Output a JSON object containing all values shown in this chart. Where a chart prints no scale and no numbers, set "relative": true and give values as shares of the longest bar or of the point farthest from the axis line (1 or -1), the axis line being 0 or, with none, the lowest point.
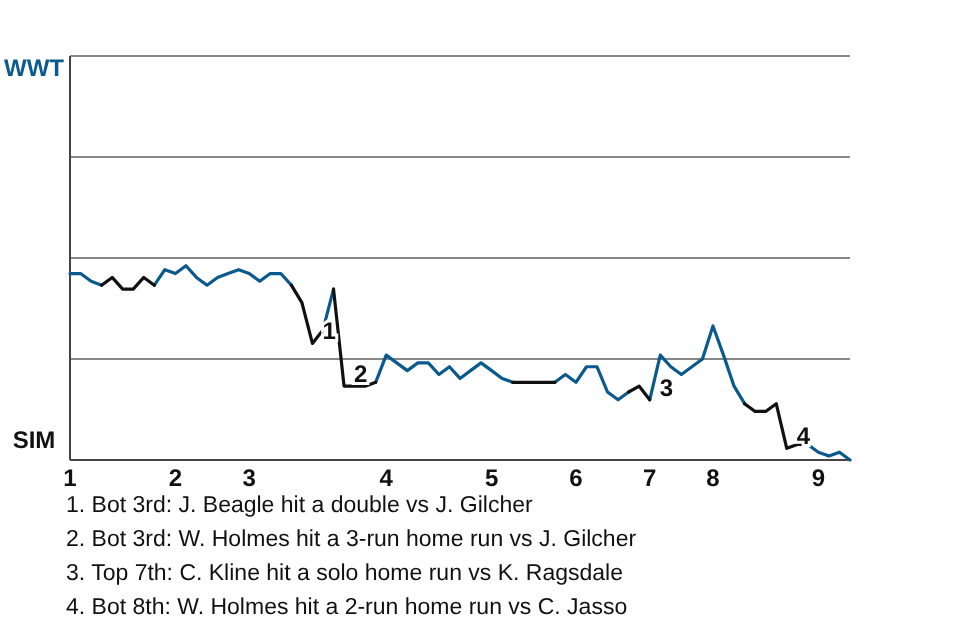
{
  "chart_data": {
    "type": "line",
    "relative": true,
    "categories": [
      "1",
      null,
      null,
      null,
      null,
      null,
      null,
      null,
      null,
      null,
      "2",
      null,
      null,
      null,
      null,
      null,
      null,
      "3",
      null,
      null,
      null,
      null,
      null,
      null,
      null,
      null,
      null,
      null,
      null,
      null,
      "4",
      null,
      null,
      null,
      null,
      null,
      null,
      null,
      null,
      null,
      "5",
      null,
      null,
      null,
      null,
      null,
      null,
      null,
      "6",
      null,
      null,
      null,
      null,
      null,
      null,
      "7",
      null,
      null,
      null,
      null,
      null,
      "8",
      null,
      null,
      null,
      null,
      null,
      null,
      null,
      null,
      null,
      "9",
      null,
      null,
      null
    ],
    "series": [
      {
        "color": "#0b5a8e",
        "values": [
          0.96,
          0.96,
          0.92,
          0.9,
          null,
          null,
          null,
          null,
          0.9,
          0.98,
          0.96,
          1,
          0.94,
          0.9,
          0.94,
          0.96,
          0.98,
          0.96,
          0.92,
          0.96,
          0.96,
          0.9,
          null,
          null,
          0.67,
          0.88,
          null,
          null,
          null,
          0.4,
          0.54,
          0.5,
          0.46,
          0.5,
          0.5,
          0.44,
          0.48,
          0.42,
          0.46,
          0.5,
          0.46,
          0.42,
          0.4,
          null,
          null,
          null,
          0.4,
          0.44,
          0.4,
          0.48,
          0.48,
          0.35,
          0.31,
          0.35,
          null,
          0.31,
          0.54,
          0.48,
          0.44,
          0.48,
          0.52,
          0.69,
          0.54,
          0.38,
          0.29,
          null,
          null,
          null,
          null,
          null,
          0.08,
          0.04,
          0.02,
          0.04,
          0
        ]
      },
      {
        "color": "#111111",
        "values": [
          null,
          null,
          null,
          0.9,
          0.94,
          0.88,
          0.88,
          0.94,
          0.9,
          null,
          null,
          null,
          null,
          null,
          null,
          null,
          null,
          null,
          null,
          null,
          null,
          null,
          null,
          null,
          null,
          null,
          null,
          null,
          null,
          null,
          null,
          null,
          null,
          null,
          null,
          null,
          null,
          null,
          null,
          null,
          null,
          null,
          0.4,
          0.4,
          0.4,
          0.4,
          0.4,
          null,
          null,
          null,
          null,
          null,
          null,
          null,
          null,
          null,
          null,
          null,
          null,
          null,
          null,
          null,
          null,
          null,
          null,
          null,
          null,
          null,
          null,
          null,
          null,
          null,
          null,
          null,
          null
        ]
      },
      {
        "name": "1",
        "color": "#111111",
        "values": [
          null,
          null,
          null,
          null,
          null,
          null,
          null,
          null,
          null,
          null,
          null,
          null,
          null,
          null,
          null,
          null,
          null,
          null,
          null,
          null,
          null,
          0.9,
          0.81,
          0.6,
          0.67,
          null,
          null,
          null,
          null,
          null,
          null,
          null,
          null,
          null,
          null,
          null,
          null,
          null,
          null,
          null,
          null,
          null,
          null,
          null,
          null,
          null,
          null,
          null,
          null,
          null,
          null,
          null,
          null,
          null,
          null,
          null,
          null,
          null,
          null,
          null,
          null,
          null,
          null,
          null,
          null,
          null,
          null,
          null,
          null,
          null,
          null,
          null,
          null,
          null,
          null
        ]
      },
      {
        "name": "2",
        "color": "#111111",
        "values": [
          null,
          null,
          null,
          null,
          null,
          null,
          null,
          null,
          null,
          null,
          null,
          null,
          null,
          null,
          null,
          null,
          null,
          null,
          null,
          null,
          null,
          null,
          null,
          null,
          null,
          0.88,
          0.38,
          0.38,
          0.38,
          0.4,
          null,
          null,
          null,
          null,
          null,
          null,
          null,
          null,
          null,
          null,
          null,
          null,
          null,
          null,
          null,
          null,
          null,
          null,
          null,
          null,
          null,
          null,
          null,
          null,
          null,
          null,
          null,
          null,
          null,
          null,
          null,
          null,
          null,
          null,
          null,
          null,
          null,
          null,
          null,
          null,
          null,
          null,
          null,
          null,
          null
        ]
      },
      {
        "name": "3",
        "color": "#111111",
        "values": [
          null,
          null,
          null,
          null,
          null,
          null,
          null,
          null,
          null,
          null,
          null,
          null,
          null,
          null,
          null,
          null,
          null,
          null,
          null,
          null,
          null,
          null,
          null,
          null,
          null,
          null,
          null,
          null,
          null,
          null,
          null,
          null,
          null,
          null,
          null,
          null,
          null,
          null,
          null,
          null,
          null,
          null,
          null,
          null,
          null,
          null,
          null,
          null,
          null,
          null,
          null,
          null,
          null,
          0.35,
          0.38,
          0.31,
          null,
          null,
          null,
          null,
          null,
          null,
          null,
          null,
          null,
          null,
          null,
          null,
          null,
          null,
          null,
          null,
          null,
          null,
          null
        ]
      },
      {
        "name": "4",
        "color": "#111111",
        "values": [
          null,
          null,
          null,
          null,
          null,
          null,
          null,
          null,
          null,
          null,
          null,
          null,
          null,
          null,
          null,
          null,
          null,
          null,
          null,
          null,
          null,
          null,
          null,
          null,
          null,
          null,
          null,
          null,
          null,
          null,
          null,
          null,
          null,
          null,
          null,
          null,
          null,
          null,
          null,
          null,
          null,
          null,
          null,
          null,
          null,
          null,
          null,
          null,
          null,
          null,
          null,
          null,
          null,
          null,
          null,
          null,
          null,
          null,
          null,
          null,
          null,
          null,
          null,
          null,
          0.29,
          0.25,
          0.25,
          0.29,
          0.06,
          0.08,
          0.08,
          null,
          null,
          null,
          null
        ]
      }
    ],
    "ref_lines": [
      {
        "axis": "y",
        "value": 0.52,
        "color": "#888888"
      },
      {
        "axis": "y",
        "value": 1.04,
        "color": "#888888"
      },
      {
        "axis": "y",
        "value": 1.56,
        "color": "#888888"
      },
      {
        "axis": "y",
        "value": 2.08,
        "color": "#888888"
      }
    ],
    "legend": false,
    "marker": "none",
    "line_style": "solid",
    "annotations": [
      "WWT",
      "SIM",
      "1. Bot 3rd: J. Beagle hit a double vs J. Gilcher",
      "2. Bot 3rd: W. Holmes hit a 3-run home run vs J. Gilcher",
      "3. Top 7th: C. Kline hit a solo home run vs K. Ragsdale",
      "4. Bot 8th: W. Holmes hit a 2-run home run vs C. Jasso"
    ]
  }
}
